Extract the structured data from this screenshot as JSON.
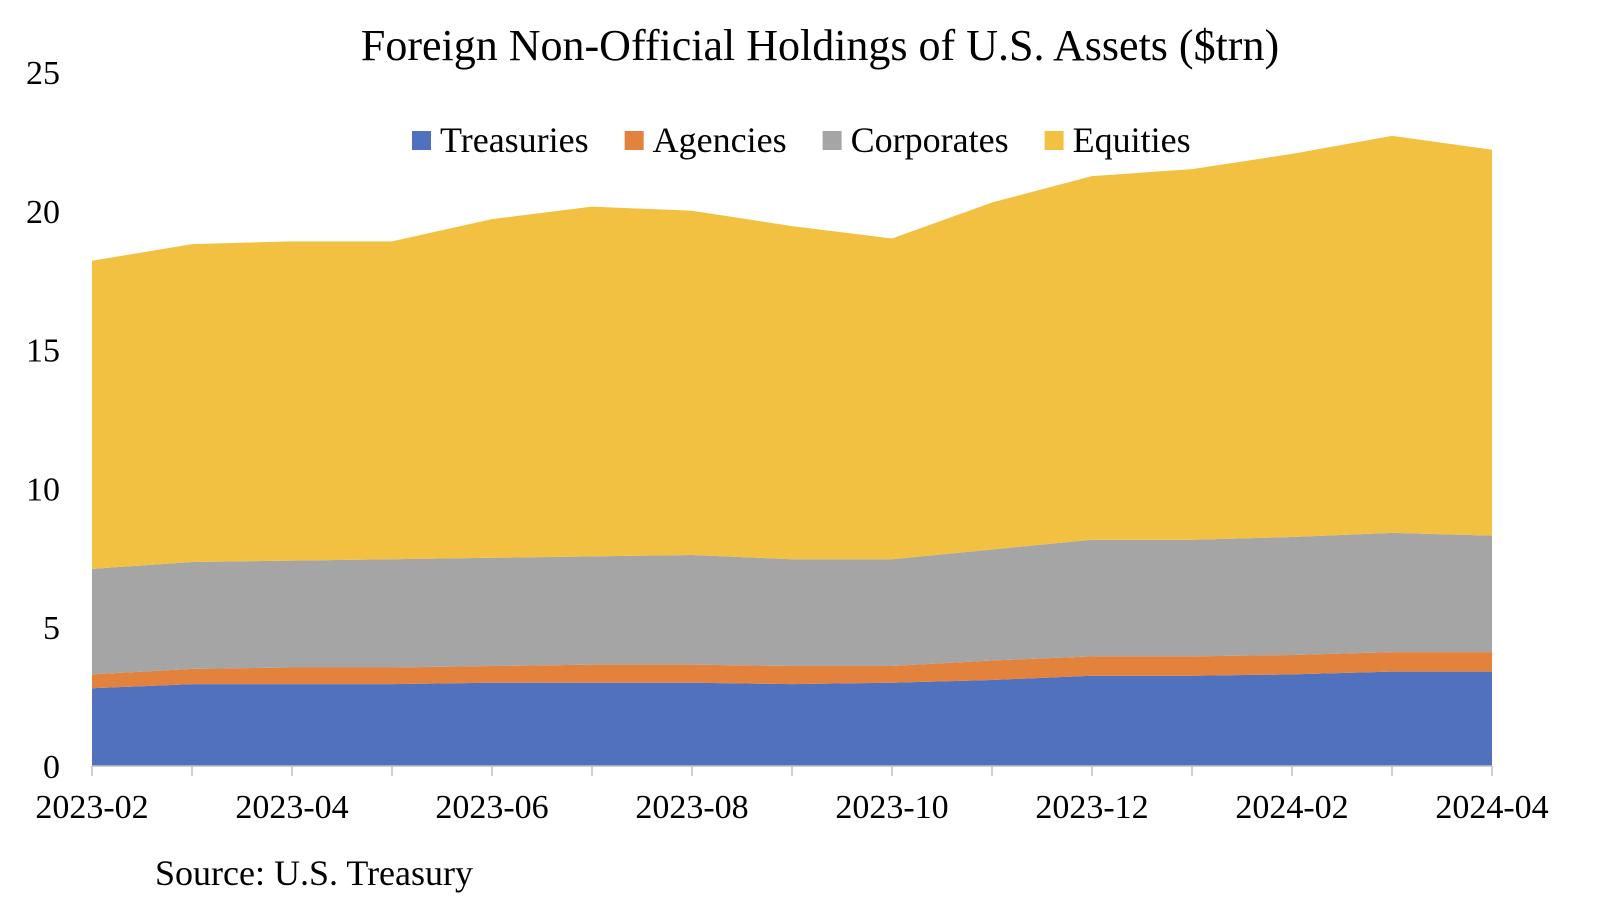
{
  "chart_data": {
    "type": "area",
    "stacked": true,
    "title": "Foreign Non-Official Holdings of U.S. Assets ($trn)",
    "source": "Source: U.S. Treasury",
    "xlabel": "",
    "ylabel": "",
    "ylim": [
      0,
      25
    ],
    "yticks": [
      0,
      5,
      10,
      15,
      20,
      25
    ],
    "grid": false,
    "legend_position": "top-center",
    "x": [
      "2023-02",
      "2023-03",
      "2023-04",
      "2023-05",
      "2023-06",
      "2023-07",
      "2023-08",
      "2023-09",
      "2023-10",
      "2023-11",
      "2023-12",
      "2024-01",
      "2024-02",
      "2024-03",
      "2024-04"
    ],
    "x_tick_labels": [
      "2023-02",
      "2023-04",
      "2023-06",
      "2023-08",
      "2023-10",
      "2023-12",
      "2024-02",
      "2024-04"
    ],
    "series": [
      {
        "name": "Treasuries",
        "color": "#4f71be",
        "values": [
          2.8,
          2.95,
          2.95,
          2.95,
          3.0,
          3.0,
          3.0,
          2.95,
          3.0,
          3.1,
          3.25,
          3.25,
          3.3,
          3.4,
          3.4
        ]
      },
      {
        "name": "Agencies",
        "color": "#e2823d",
        "values": [
          0.5,
          0.55,
          0.6,
          0.6,
          0.6,
          0.65,
          0.65,
          0.65,
          0.6,
          0.7,
          0.7,
          0.7,
          0.7,
          0.7,
          0.7
        ]
      },
      {
        "name": "Corporates",
        "color": "#a5a5a5",
        "values": [
          3.8,
          3.85,
          3.85,
          3.9,
          3.9,
          3.9,
          3.95,
          3.85,
          3.85,
          4.0,
          4.2,
          4.2,
          4.25,
          4.3,
          4.2
        ]
      },
      {
        "name": "Equities",
        "color": "#f2c142",
        "values": [
          11.1,
          11.45,
          11.5,
          11.45,
          12.2,
          12.6,
          12.4,
          12.0,
          11.55,
          12.5,
          13.1,
          13.35,
          13.8,
          14.3,
          13.9
        ]
      }
    ]
  }
}
